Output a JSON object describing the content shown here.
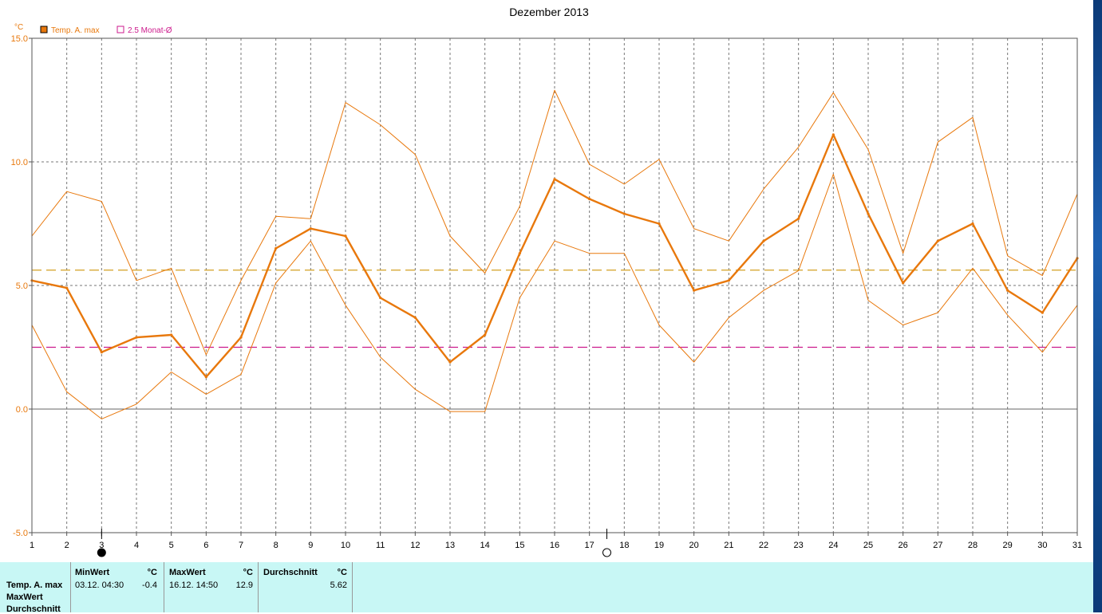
{
  "chart_data": {
    "type": "line",
    "title": "Dezember 2013",
    "unit_label": "°C",
    "x": [
      1,
      2,
      3,
      4,
      5,
      6,
      7,
      8,
      9,
      10,
      11,
      12,
      13,
      14,
      15,
      16,
      17,
      18,
      19,
      20,
      21,
      22,
      23,
      24,
      25,
      26,
      27,
      28,
      29,
      30,
      31
    ],
    "xlim": [
      1,
      31
    ],
    "ylim": [
      -5,
      15
    ],
    "yticks": [
      "15.0",
      "10.0",
      "5.0",
      "0.0",
      "-5.0"
    ],
    "ytick_values": [
      15,
      10,
      5,
      0,
      -5
    ],
    "grid": true,
    "legend_position": "top-left",
    "legend": [
      {
        "label": "Temp. A. max",
        "color": "#e8780c",
        "marker": "filled-square"
      },
      {
        "label": "2.5 Monat-Ø",
        "color": "#cc1a8c",
        "marker": "open-square"
      }
    ],
    "series": [
      {
        "name": "Temp. A. max",
        "color": "#e8780c",
        "role": "main",
        "values": [
          5.2,
          4.9,
          2.3,
          2.9,
          3.0,
          1.3,
          2.9,
          6.5,
          7.3,
          7.0,
          4.5,
          3.7,
          1.9,
          3.0,
          6.3,
          9.3,
          8.5,
          7.9,
          7.5,
          4.8,
          5.2,
          6.8,
          7.7,
          11.1,
          7.9,
          5.1,
          6.8,
          7.5,
          4.8,
          3.9,
          6.1
        ]
      },
      {
        "color": "#e8780c",
        "role": "upper-band",
        "values": [
          7.0,
          8.8,
          8.4,
          5.2,
          5.7,
          2.2,
          5.2,
          7.8,
          7.7,
          12.4,
          11.5,
          10.3,
          7.0,
          5.5,
          8.2,
          12.9,
          9.9,
          9.1,
          10.1,
          7.3,
          6.8,
          8.9,
          10.6,
          12.8,
          10.5,
          6.3,
          10.8,
          11.8,
          6.2,
          5.4,
          8.7
        ]
      },
      {
        "color": "#e8780c",
        "role": "lower-band",
        "values": [
          3.4,
          0.7,
          -0.4,
          0.2,
          1.5,
          0.6,
          1.4,
          5.1,
          6.8,
          4.2,
          2.1,
          0.8,
          -0.1,
          -0.1,
          4.5,
          6.8,
          6.3,
          6.3,
          3.4,
          1.9,
          3.7,
          4.8,
          5.6,
          9.5,
          4.4,
          3.4,
          3.9,
          5.7,
          3.8,
          2.3,
          4.2
        ]
      }
    ],
    "reference_lines": [
      {
        "label": "Durchschnitt",
        "value": 5.62,
        "color": "#d4a020",
        "style": "dashed"
      },
      {
        "label": "2.5 Monat-Ø",
        "value": 2.5,
        "color": "#cc1a8c",
        "style": "dashed"
      }
    ],
    "moon_markers": [
      {
        "x": 3,
        "phase": "new-moon"
      },
      {
        "x": 17.5,
        "phase": "full-moon"
      }
    ]
  },
  "stats_panel": {
    "row_labels": [
      "Temp. A. max",
      "MaxWert",
      "Durchschnitt"
    ],
    "min": {
      "header": "MinWert",
      "unit": "°C",
      "datetime": "03.12.  04:30",
      "value": "-0.4"
    },
    "max": {
      "header": "MaxWert",
      "unit": "°C",
      "datetime": "16.12.  14:50",
      "value": "12.9"
    },
    "avg": {
      "header": "Durchschnitt",
      "unit": "°C",
      "value": "5.62"
    }
  },
  "colors": {
    "series": "#e8780c",
    "reference_avg": "#d4a020",
    "reference_2_5": "#cc1a8c",
    "panel_bg": "#c8f7f5"
  }
}
